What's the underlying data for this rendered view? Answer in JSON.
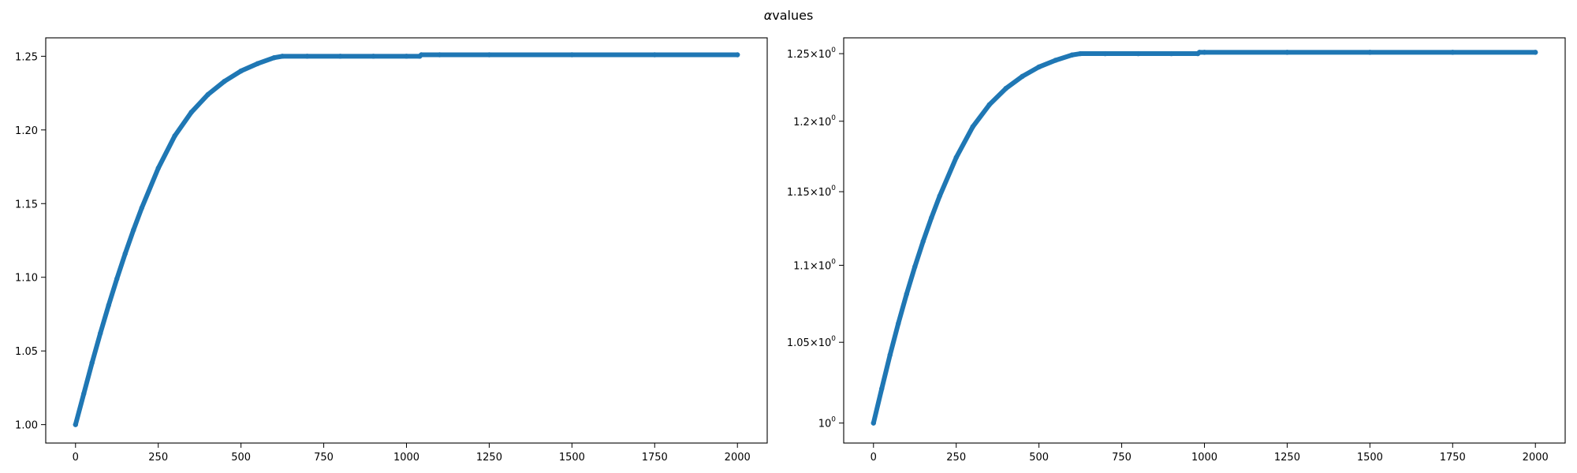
{
  "figure_title": "αvalues",
  "title_parts": {
    "symbol": "α",
    "word": "values"
  },
  "chart_data": [
    {
      "type": "line",
      "title": "",
      "xlabel": "",
      "ylabel": "",
      "xlim": [
        -90,
        2090
      ],
      "ylim": [
        0.9875,
        1.2625
      ],
      "yscale": "linear",
      "grid": false,
      "x_ticks": [
        0,
        250,
        500,
        750,
        1000,
        1250,
        1500,
        1750,
        2000
      ],
      "x_tick_labels": [
        "0",
        "250",
        "500",
        "750",
        "1000",
        "1250",
        "1500",
        "1750",
        "2000"
      ],
      "y_ticks": [
        1.0,
        1.05,
        1.1,
        1.15,
        1.2,
        1.25
      ],
      "y_tick_labels": [
        "1.00",
        "1.05",
        "1.10",
        "1.15",
        "1.20",
        "1.25"
      ],
      "series": [
        {
          "color": "#1f77b4",
          "marker": "point",
          "x": [
            0,
            25,
            50,
            75,
            100,
            125,
            150,
            175,
            200,
            250,
            300,
            350,
            400,
            450,
            500,
            550,
            600,
            625,
            700,
            800,
            900,
            1000,
            1040,
            1045,
            1100,
            1250,
            1500,
            1750,
            2000
          ],
          "y": [
            1.0,
            1.021,
            1.042,
            1.062,
            1.081,
            1.099,
            1.116,
            1.132,
            1.147,
            1.174,
            1.196,
            1.212,
            1.224,
            1.233,
            1.24,
            1.245,
            1.249,
            1.25,
            1.25,
            1.25,
            1.25,
            1.25,
            1.25,
            1.251,
            1.251,
            1.251,
            1.251,
            1.251,
            1.251
          ]
        }
      ]
    },
    {
      "type": "line",
      "title": "",
      "xlabel": "",
      "ylabel": "",
      "xlim": [
        -90,
        2090
      ],
      "ylim": [
        0.988,
        1.262
      ],
      "yscale": "log",
      "grid": false,
      "x_ticks": [
        0,
        250,
        500,
        750,
        1000,
        1250,
        1500,
        1750,
        2000
      ],
      "x_tick_labels": [
        "0",
        "250",
        "500",
        "750",
        "1000",
        "1250",
        "1500",
        "1750",
        "2000"
      ],
      "y_ticks": [
        1.0,
        1.05,
        1.1,
        1.15,
        1.2,
        1.25
      ],
      "y_tick_labels": [
        {
          "mantissa": "",
          "base": "10",
          "exp": "0"
        },
        {
          "mantissa": "1.05",
          "base": "10",
          "exp": "0"
        },
        {
          "mantissa": "1.1",
          "base": "10",
          "exp": "0"
        },
        {
          "mantissa": "1.15",
          "base": "10",
          "exp": "0"
        },
        {
          "mantissa": "1.2",
          "base": "10",
          "exp": "0"
        },
        {
          "mantissa": "1.25",
          "base": "10",
          "exp": "0"
        }
      ],
      "series": [
        {
          "color": "#1f77b4",
          "marker": "point",
          "x": [
            0,
            25,
            50,
            75,
            100,
            125,
            150,
            175,
            200,
            250,
            300,
            350,
            400,
            450,
            500,
            550,
            600,
            625,
            700,
            800,
            900,
            980,
            985,
            1000,
            1250,
            1500,
            1750,
            2000
          ],
          "y": [
            1.0,
            1.021,
            1.042,
            1.062,
            1.081,
            1.099,
            1.116,
            1.132,
            1.147,
            1.174,
            1.196,
            1.212,
            1.224,
            1.233,
            1.24,
            1.245,
            1.249,
            1.25,
            1.25,
            1.25,
            1.25,
            1.25,
            1.251,
            1.251,
            1.251,
            1.251,
            1.251,
            1.251
          ]
        }
      ]
    }
  ]
}
